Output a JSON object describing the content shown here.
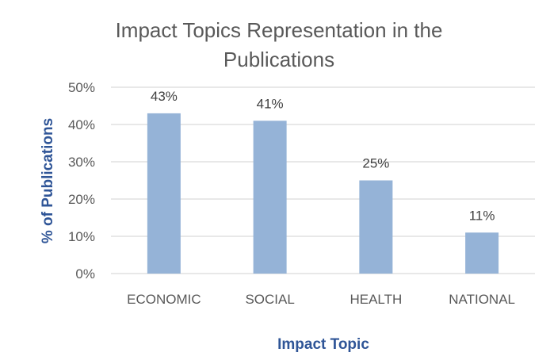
{
  "chart_data": {
    "type": "bar",
    "title_lines": [
      "Impact Topics Representation in the",
      "Publications"
    ],
    "categories": [
      "ECONOMIC",
      "SOCIAL",
      "HEALTH",
      "NATIONAL"
    ],
    "values": [
      43,
      41,
      25,
      11
    ],
    "data_labels": [
      "43%",
      "41%",
      "25%",
      "11%"
    ],
    "xlabel": "Impact Topic",
    "ylabel": "% of Publications",
    "ylim": [
      0,
      50
    ],
    "yticks": [
      0,
      10,
      20,
      30,
      40,
      50
    ],
    "ytick_labels": [
      "0%",
      "10%",
      "20%",
      "30%",
      "40%",
      "50%"
    ],
    "grid": true,
    "legend": "none",
    "colors": {
      "bar": "#95b3d7",
      "gridline": "#d9d9d9",
      "axis_title": "#2f5597",
      "text": "#595959"
    }
  }
}
